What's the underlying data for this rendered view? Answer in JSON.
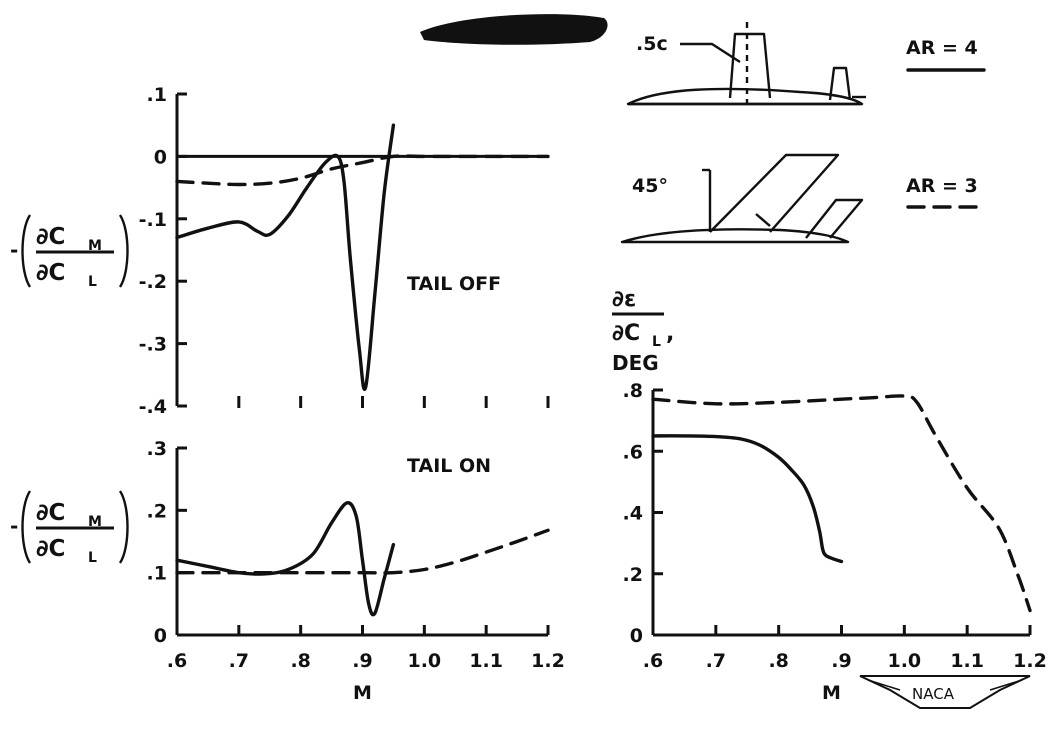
{
  "chart_data": [
    {
      "type": "line",
      "panel": "pitching-moment-tail-off",
      "annotation": "TAIL OFF",
      "ylim": [
        -0.4,
        0.1
      ],
      "yticks": [
        ".1",
        "0",
        "-.1",
        "-.2",
        "-.3",
        "-.4"
      ],
      "xlim": [
        0.6,
        1.2
      ],
      "series": [
        {
          "name": "AR = 4",
          "style": "solid",
          "x": [
            0.6,
            0.65,
            0.7,
            0.73,
            0.75,
            0.78,
            0.81,
            0.84,
            0.86,
            0.87,
            0.88,
            0.895,
            0.905,
            0.92,
            0.935,
            0.95
          ],
          "y": [
            -0.13,
            -0.115,
            -0.105,
            -0.12,
            -0.125,
            -0.095,
            -0.05,
            -0.01,
            0.0,
            -0.04,
            -0.16,
            -0.31,
            -0.37,
            -0.22,
            -0.06,
            0.05
          ]
        },
        {
          "name": "AR = 3",
          "style": "dashed",
          "x": [
            0.6,
            0.65,
            0.7,
            0.75,
            0.8,
            0.85,
            0.9,
            0.95,
            1.0,
            1.1,
            1.2
          ],
          "y": [
            -0.04,
            -0.043,
            -0.045,
            -0.043,
            -0.035,
            -0.02,
            -0.01,
            0.0,
            0.0,
            0.0,
            0.0
          ]
        }
      ]
    },
    {
      "type": "line",
      "panel": "pitching-moment-tail-on",
      "annotation": "TAIL ON",
      "ylim": [
        0,
        0.3
      ],
      "yticks": [
        ".3",
        ".2",
        ".1",
        "0"
      ],
      "xlim": [
        0.6,
        1.2
      ],
      "xticks": [
        ".6",
        ".7",
        ".8",
        ".9",
        "1.0",
        "1.1",
        "1.2"
      ],
      "xlabel": "M",
      "series": [
        {
          "name": "AR = 4",
          "style": "solid",
          "x": [
            0.6,
            0.65,
            0.7,
            0.74,
            0.78,
            0.82,
            0.85,
            0.875,
            0.89,
            0.9,
            0.91,
            0.92,
            0.935,
            0.95
          ],
          "y": [
            0.12,
            0.11,
            0.1,
            0.098,
            0.105,
            0.13,
            0.18,
            0.212,
            0.19,
            0.12,
            0.05,
            0.035,
            0.09,
            0.145
          ]
        },
        {
          "name": "AR = 3",
          "style": "dashed",
          "x": [
            0.6,
            0.7,
            0.8,
            0.9,
            0.95,
            1.0,
            1.05,
            1.1,
            1.15,
            1.2
          ],
          "y": [
            0.1,
            0.1,
            0.1,
            0.1,
            0.1,
            0.105,
            0.117,
            0.133,
            0.15,
            0.168
          ]
        }
      ]
    },
    {
      "type": "line",
      "panel": "downwash-derivative",
      "ylabel_lines": [
        "∂ε",
        "∂C",
        "DEG"
      ],
      "ylim": [
        0,
        0.8
      ],
      "yticks": [
        ".8",
        ".6",
        ".4",
        ".2",
        "0"
      ],
      "xlim": [
        0.6,
        1.2
      ],
      "xticks": [
        ".6",
        ".7",
        ".8",
        ".9",
        "1.0",
        "1.1",
        "1.2"
      ],
      "xlabel": "M",
      "series": [
        {
          "name": "AR = 4",
          "style": "solid",
          "x": [
            0.6,
            0.65,
            0.7,
            0.74,
            0.77,
            0.8,
            0.82,
            0.84,
            0.855,
            0.865,
            0.87,
            0.875,
            0.885,
            0.9
          ],
          "y": [
            0.65,
            0.65,
            0.648,
            0.64,
            0.62,
            0.58,
            0.54,
            0.49,
            0.42,
            0.34,
            0.28,
            0.26,
            0.25,
            0.24
          ]
        },
        {
          "name": "AR = 3",
          "style": "dashed",
          "x": [
            0.6,
            0.7,
            0.8,
            0.9,
            0.95,
            1.0,
            1.02,
            1.05,
            1.1,
            1.15,
            1.18,
            1.2
          ],
          "y": [
            0.77,
            0.755,
            0.76,
            0.77,
            0.775,
            0.78,
            0.76,
            0.65,
            0.48,
            0.35,
            0.2,
            0.08
          ]
        }
      ]
    }
  ],
  "ylabels": {
    "numerator": "∂C",
    "numerator_sub": "M",
    "denominator": "∂C",
    "denominator_sub": "L",
    "sign": "-"
  },
  "downwash_sub": "L",
  "legend": {
    "solid_label": "AR = 4",
    "dashed_label": "AR = 3",
    "sketch_chord_label": ".5c",
    "sketch_sweep_label": "45°"
  },
  "logo_text": "NACA"
}
